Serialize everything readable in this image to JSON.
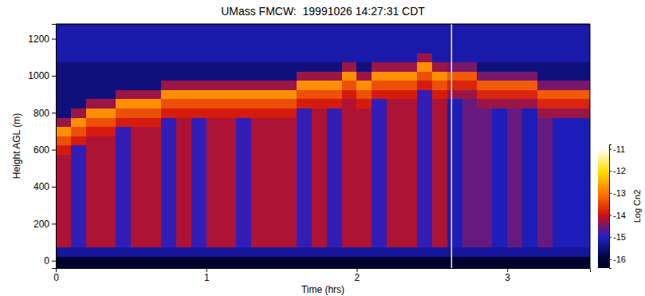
{
  "chart_data": {
    "type": "heatmap",
    "title": "UMass FMCW:  19991026 14:27:31 CDT",
    "x_label": "Time (hrs)",
    "y_label": "Height AGL (m)",
    "xlim": [
      0,
      3.55
    ],
    "ylim": [
      -40,
      1280
    ],
    "xticks": [
      0,
      1,
      2,
      3
    ],
    "yticks": [
      0,
      200,
      400,
      600,
      800,
      1000,
      1200
    ],
    "vertical_line": 2.63,
    "x": [
      0.05,
      0.15,
      0.25,
      0.35,
      0.45,
      0.55,
      0.65,
      0.75,
      0.85,
      0.95,
      1.05,
      1.15,
      1.25,
      1.35,
      1.45,
      1.55,
      1.65,
      1.75,
      1.85,
      1.95,
      2.05,
      2.15,
      2.25,
      2.35,
      2.45,
      2.55,
      2.65,
      2.75,
      2.85,
      2.95,
      3.05,
      3.15,
      3.25,
      3.35,
      3.45,
      3.55
    ],
    "y": [
      0,
      50,
      100,
      150,
      200,
      250,
      300,
      350,
      400,
      450,
      500,
      550,
      600,
      650,
      700,
      750,
      800,
      850,
      900,
      950,
      1000,
      1050,
      1100,
      1150,
      1200,
      1250
    ],
    "z": [
      [
        -16,
        -15.3,
        -14.2,
        -14.2,
        -14.2,
        -14.2,
        -14.2,
        -14.2,
        -14.2,
        -14.2,
        -14.2,
        -14.2,
        -13.9,
        -13.4,
        -12.8,
        -14.3,
        -15.5,
        -15.5,
        -15.5,
        -15.5,
        -15.5,
        -15.5,
        -15.2,
        -15.2,
        -15.2,
        -15.2
      ],
      [
        -16,
        -15.3,
        -14.9,
        -14.9,
        -14.9,
        -14.9,
        -14.9,
        -14.9,
        -14.9,
        -14.9,
        -14.9,
        -14.9,
        -14.9,
        -13.9,
        -13.4,
        -12.8,
        -14.3,
        -15.5,
        -15.5,
        -15.5,
        -15.5,
        -15.5,
        -15.2,
        -15.2,
        -15.2,
        -15.2
      ],
      [
        -16,
        -15.3,
        -14.2,
        -14.2,
        -14.2,
        -14.2,
        -14.2,
        -14.2,
        -14.2,
        -14.2,
        -14.2,
        -14.2,
        -14.2,
        -14.2,
        -13.9,
        -13.4,
        -12.8,
        -14.3,
        -15.5,
        -15.5,
        -15.5,
        -15.5,
        -15.2,
        -15.2,
        -15.2,
        -15.2
      ],
      [
        -16,
        -15.3,
        -14.2,
        -14.2,
        -14.2,
        -14.2,
        -14.2,
        -14.2,
        -14.2,
        -14.2,
        -14.2,
        -14.2,
        -14.2,
        -14.2,
        -13.9,
        -13.4,
        -12.8,
        -14.3,
        -15.5,
        -15.5,
        -15.5,
        -15.5,
        -15.2,
        -15.2,
        -15.2,
        -15.2
      ],
      [
        -16,
        -15.3,
        -14.9,
        -14.9,
        -14.9,
        -14.9,
        -14.9,
        -14.9,
        -14.9,
        -14.9,
        -14.9,
        -14.9,
        -14.9,
        -14.9,
        -14.9,
        -13.9,
        -13.4,
        -12.8,
        -14.3,
        -15.5,
        -15.5,
        -15.5,
        -15.2,
        -15.2,
        -15.2,
        -15.2
      ],
      [
        -16,
        -15.3,
        -14.2,
        -14.2,
        -14.2,
        -14.2,
        -14.2,
        -14.2,
        -14.2,
        -14.2,
        -14.2,
        -14.2,
        -14.2,
        -14.2,
        -14.2,
        -13.9,
        -13.4,
        -12.8,
        -14.3,
        -15.5,
        -15.5,
        -15.5,
        -15.2,
        -15.2,
        -15.2,
        -15.2
      ],
      [
        -16,
        -15.3,
        -14.2,
        -14.2,
        -14.2,
        -14.2,
        -14.2,
        -14.2,
        -14.2,
        -14.2,
        -14.2,
        -14.2,
        -14.2,
        -14.2,
        -14.2,
        -13.9,
        -13.4,
        -12.8,
        -14.3,
        -15.5,
        -15.5,
        -15.5,
        -15.2,
        -15.2,
        -15.2,
        -15.2
      ],
      [
        -16,
        -15.3,
        -14.9,
        -14.9,
        -14.9,
        -14.9,
        -14.9,
        -14.9,
        -14.9,
        -14.9,
        -14.9,
        -14.9,
        -14.9,
        -14.9,
        -14.9,
        -14.9,
        -13.9,
        -13.4,
        -12.8,
        -14.3,
        -15.5,
        -15.5,
        -15.2,
        -15.2,
        -15.2,
        -15.2
      ],
      [
        -16,
        -15.3,
        -14.2,
        -14.2,
        -14.2,
        -14.2,
        -14.2,
        -14.2,
        -14.2,
        -14.2,
        -14.2,
        -14.2,
        -14.2,
        -14.2,
        -14.2,
        -14.2,
        -13.9,
        -13.4,
        -12.8,
        -14.3,
        -15.5,
        -15.5,
        -15.2,
        -15.2,
        -15.2,
        -15.2
      ],
      [
        -16,
        -15.3,
        -14.9,
        -14.9,
        -14.9,
        -14.9,
        -14.9,
        -14.9,
        -14.9,
        -14.9,
        -14.9,
        -14.9,
        -14.9,
        -14.9,
        -14.9,
        -14.9,
        -13.9,
        -13.4,
        -12.8,
        -14.3,
        -15.5,
        -15.5,
        -15.2,
        -15.2,
        -15.2,
        -15.2
      ],
      [
        -16,
        -15.3,
        -14.2,
        -14.2,
        -14.2,
        -14.2,
        -14.2,
        -14.2,
        -14.2,
        -14.2,
        -14.2,
        -14.2,
        -14.2,
        -14.2,
        -14.2,
        -14.2,
        -13.9,
        -13.4,
        -12.8,
        -14.3,
        -15.5,
        -15.5,
        -15.2,
        -15.2,
        -15.2,
        -15.2
      ],
      [
        -16,
        -15.3,
        -14.2,
        -14.2,
        -14.2,
        -14.2,
        -14.2,
        -14.2,
        -14.2,
        -14.2,
        -14.2,
        -14.2,
        -14.2,
        -14.2,
        -14.2,
        -14.2,
        -13.9,
        -13.4,
        -12.8,
        -14.3,
        -15.5,
        -15.5,
        -15.2,
        -15.2,
        -15.2,
        -15.2
      ],
      [
        -16,
        -15.3,
        -14.9,
        -14.9,
        -14.9,
        -14.9,
        -14.9,
        -14.9,
        -14.9,
        -14.9,
        -14.9,
        -14.9,
        -14.9,
        -14.9,
        -14.9,
        -14.9,
        -13.9,
        -13.4,
        -12.8,
        -14.3,
        -15.5,
        -15.5,
        -15.2,
        -15.2,
        -15.2,
        -15.2
      ],
      [
        -16,
        -15.3,
        -14.2,
        -14.2,
        -14.2,
        -14.2,
        -14.2,
        -14.2,
        -14.2,
        -14.2,
        -14.2,
        -14.2,
        -14.2,
        -14.2,
        -14.2,
        -14.2,
        -13.9,
        -13.4,
        -12.8,
        -14.3,
        -15.5,
        -15.5,
        -15.2,
        -15.2,
        -15.2,
        -15.2
      ],
      [
        -16,
        -15.3,
        -14.2,
        -14.2,
        -14.2,
        -14.2,
        -14.2,
        -14.2,
        -14.2,
        -14.2,
        -14.2,
        -14.2,
        -14.2,
        -14.2,
        -14.2,
        -14.2,
        -13.9,
        -13.4,
        -12.8,
        -14.3,
        -15.5,
        -15.5,
        -15.2,
        -15.2,
        -15.2,
        -15.2
      ],
      [
        -16,
        -15.3,
        -14.2,
        -14.2,
        -14.2,
        -14.2,
        -14.2,
        -14.2,
        -14.2,
        -14.2,
        -14.2,
        -14.2,
        -14.2,
        -14.2,
        -14.2,
        -14.2,
        -13.9,
        -13.4,
        -12.8,
        -14.3,
        -15.5,
        -15.5,
        -15.2,
        -15.2,
        -15.2,
        -15.2
      ],
      [
        -16,
        -15.3,
        -14.9,
        -14.9,
        -14.9,
        -14.9,
        -14.9,
        -14.9,
        -14.9,
        -14.9,
        -14.9,
        -14.9,
        -14.9,
        -14.9,
        -14.9,
        -14.9,
        -14.9,
        -13.9,
        -13.4,
        -12.8,
        -14.3,
        -15.5,
        -15.2,
        -15.2,
        -15.2,
        -15.2
      ],
      [
        -16,
        -15.3,
        -14.2,
        -14.2,
        -14.2,
        -14.2,
        -14.2,
        -14.2,
        -14.2,
        -14.2,
        -14.2,
        -14.2,
        -14.2,
        -14.2,
        -14.2,
        -14.2,
        -14.2,
        -13.9,
        -13.4,
        -12.8,
        -14.3,
        -15.5,
        -15.2,
        -15.2,
        -15.2,
        -15.2
      ],
      [
        -16,
        -15.3,
        -14.9,
        -14.9,
        -14.9,
        -14.9,
        -14.9,
        -14.9,
        -14.9,
        -14.9,
        -14.9,
        -14.9,
        -14.9,
        -14.9,
        -14.9,
        -14.9,
        -14.9,
        -13.9,
        -13.4,
        -12.8,
        -14.3,
        -15.5,
        -15.2,
        -15.2,
        -15.2,
        -15.2
      ],
      [
        -16,
        -15.3,
        -14.2,
        -14.2,
        -14.2,
        -14.2,
        -14.2,
        -14.2,
        -14.2,
        -14.2,
        -14.2,
        -14.2,
        -14.2,
        -14.2,
        -14.2,
        -14.2,
        -14.2,
        -14.2,
        -13.9,
        -13.4,
        -12.8,
        -14.3,
        -15.2,
        -15.2,
        -15.2,
        -15.2
      ],
      [
        -16,
        -15.3,
        -14.2,
        -14.2,
        -14.2,
        -14.2,
        -14.2,
        -14.2,
        -14.2,
        -14.2,
        -14.2,
        -14.2,
        -14.2,
        -14.2,
        -14.2,
        -14.2,
        -14.2,
        -13.9,
        -13.4,
        -12.8,
        -14.3,
        -15.5,
        -15.2,
        -15.2,
        -15.2,
        -15.2
      ],
      [
        -16,
        -15.3,
        -14.9,
        -14.9,
        -14.9,
        -14.9,
        -14.9,
        -14.9,
        -14.9,
        -14.9,
        -14.9,
        -14.9,
        -14.9,
        -14.9,
        -14.9,
        -14.9,
        -14.9,
        -14.9,
        -13.9,
        -13.4,
        -12.8,
        -14.3,
        -15.2,
        -15.2,
        -15.2,
        -15.2
      ],
      [
        -16,
        -15.3,
        -14.2,
        -14.2,
        -14.2,
        -14.2,
        -14.2,
        -14.2,
        -14.2,
        -14.2,
        -14.2,
        -14.2,
        -14.2,
        -14.2,
        -14.2,
        -14.2,
        -14.2,
        -14.2,
        -13.9,
        -13.4,
        -12.8,
        -14.3,
        -15.2,
        -15.2,
        -15.2,
        -15.2
      ],
      [
        -16,
        -15.3,
        -14.2,
        -14.2,
        -14.2,
        -14.2,
        -14.2,
        -14.2,
        -14.2,
        -14.2,
        -14.2,
        -14.2,
        -14.2,
        -14.2,
        -14.2,
        -14.2,
        -14.2,
        -14.2,
        -13.9,
        -13.4,
        -12.8,
        -14.3,
        -15.2,
        -15.2,
        -15.2,
        -15.2
      ],
      [
        -16,
        -15.3,
        -14.9,
        -14.9,
        -14.9,
        -14.9,
        -14.9,
        -14.9,
        -14.9,
        -14.9,
        -14.9,
        -14.9,
        -14.9,
        -14.9,
        -14.9,
        -14.9,
        -14.9,
        -14.9,
        -14.9,
        -13.9,
        -13.4,
        -12.8,
        -14.3,
        -15.2,
        -15.2,
        -15.2
      ],
      [
        -16,
        -15.3,
        -14.2,
        -14.2,
        -14.2,
        -14.2,
        -14.2,
        -14.2,
        -14.2,
        -14.2,
        -14.2,
        -14.2,
        -14.2,
        -14.2,
        -14.2,
        -14.2,
        -14.2,
        -14.2,
        -13.9,
        -13.4,
        -12.8,
        -14.3,
        -15.2,
        -15.2,
        -15.2,
        -15.2
      ],
      [
        -16,
        -15.3,
        -15.1,
        -15.1,
        -15.1,
        -15.1,
        -15.1,
        -15.1,
        -15.1,
        -15.1,
        -15.1,
        -15.1,
        -15.1,
        -15.1,
        -15.1,
        -15.1,
        -15.1,
        -15.1,
        -14.3,
        -13.8,
        -13.3,
        -14.5,
        -15.2,
        -15.2,
        -15.2,
        -15.2
      ],
      [
        -16,
        -15.3,
        -14.6,
        -14.6,
        -14.6,
        -14.6,
        -14.6,
        -14.6,
        -14.6,
        -14.6,
        -14.6,
        -14.6,
        -14.6,
        -14.6,
        -14.6,
        -14.6,
        -14.6,
        -14.6,
        -14.3,
        -13.8,
        -13.3,
        -14.5,
        -15.2,
        -15.2,
        -15.2,
        -15.2
      ],
      [
        -16,
        -15.3,
        -14.6,
        -14.6,
        -14.6,
        -14.6,
        -14.6,
        -14.6,
        -14.6,
        -14.6,
        -14.6,
        -14.6,
        -14.6,
        -14.6,
        -14.6,
        -14.6,
        -14.6,
        -14.3,
        -13.8,
        -13.3,
        -14.5,
        -15.5,
        -15.2,
        -15.2,
        -15.2,
        -15.2
      ],
      [
        -16,
        -15.3,
        -15.1,
        -15.1,
        -15.1,
        -15.1,
        -15.1,
        -15.1,
        -15.1,
        -15.1,
        -15.1,
        -15.1,
        -15.1,
        -15.1,
        -15.1,
        -15.1,
        -15.1,
        -14.3,
        -13.8,
        -13.3,
        -14.5,
        -15.5,
        -15.2,
        -15.2,
        -15.2,
        -15.2
      ],
      [
        -16,
        -15.3,
        -14.6,
        -14.6,
        -14.6,
        -14.6,
        -14.6,
        -14.6,
        -14.6,
        -14.6,
        -14.6,
        -14.6,
        -14.6,
        -14.6,
        -14.6,
        -14.6,
        -14.6,
        -14.3,
        -13.8,
        -13.3,
        -14.5,
        -15.5,
        -15.2,
        -15.2,
        -15.2,
        -15.2
      ],
      [
        -16,
        -15.3,
        -15.1,
        -15.1,
        -15.1,
        -15.1,
        -15.1,
        -15.1,
        -15.1,
        -15.1,
        -15.1,
        -15.1,
        -15.1,
        -15.1,
        -15.1,
        -15.1,
        -15.1,
        -14.3,
        -13.8,
        -13.3,
        -14.5,
        -15.5,
        -15.2,
        -15.2,
        -15.2,
        -15.2
      ],
      [
        -16,
        -15.3,
        -14.6,
        -14.6,
        -14.6,
        -14.6,
        -14.6,
        -14.6,
        -14.6,
        -14.6,
        -14.6,
        -14.6,
        -14.6,
        -14.6,
        -14.6,
        -14.6,
        -14.3,
        -13.8,
        -13.3,
        -14.5,
        -15.5,
        -15.5,
        -15.2,
        -15.2,
        -15.2,
        -15.2
      ],
      [
        -16,
        -15.3,
        -15.1,
        -15.1,
        -15.1,
        -15.1,
        -15.1,
        -15.1,
        -15.1,
        -15.1,
        -15.1,
        -15.1,
        -15.1,
        -15.1,
        -15.1,
        -15.1,
        -14.3,
        -13.8,
        -13.3,
        -14.5,
        -15.5,
        -15.5,
        -15.2,
        -15.2,
        -15.2,
        -15.2
      ],
      [
        -16,
        -15.3,
        -15.1,
        -15.1,
        -15.1,
        -15.1,
        -15.1,
        -15.1,
        -15.1,
        -15.1,
        -15.1,
        -15.1,
        -15.1,
        -15.1,
        -15.1,
        -15.1,
        -14.3,
        -13.8,
        -13.3,
        -14.5,
        -15.5,
        -15.5,
        -15.2,
        -15.2,
        -15.2,
        -15.2
      ],
      [
        -16,
        -15.3,
        -15.1,
        -15.1,
        -15.1,
        -15.1,
        -15.1,
        -15.1,
        -15.1,
        -15.1,
        -15.1,
        -15.1,
        -15.1,
        -15.1,
        -15.1,
        -15.1,
        -14.3,
        -13.8,
        -13.3,
        -14.5,
        -15.5,
        -15.5,
        -15.2,
        -15.2,
        -15.2,
        -15.2
      ]
    ],
    "colorbar": {
      "range": [
        -16.4,
        -10.8
      ],
      "ticks": [
        -16,
        -15,
        -14,
        -13,
        -12,
        -11
      ],
      "label": "Log Cn2"
    }
  }
}
